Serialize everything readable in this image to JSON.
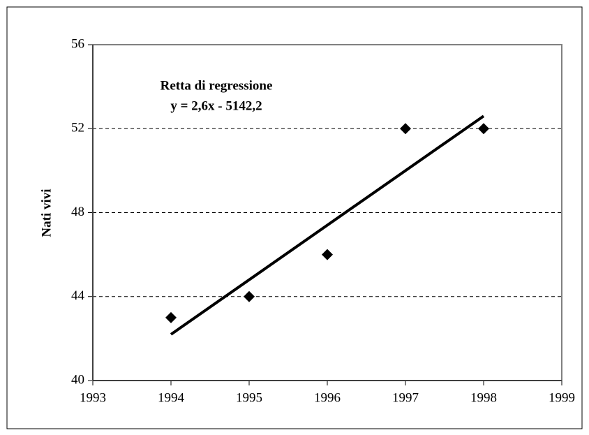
{
  "chart_data": {
    "type": "scatter",
    "y_label": "Nati vivi",
    "annotations": [
      "Retta di regressione",
      "y = 2,6x - 5142,2"
    ],
    "x": [
      1994,
      1995,
      1996,
      1997,
      1998
    ],
    "values": [
      43,
      44,
      46,
      52,
      52
    ],
    "color": "#000000",
    "trendline": {
      "x": [
        1994,
        1998
      ],
      "values": [
        42.2,
        52.6
      ],
      "color": "#000000"
    },
    "xlim": [
      1993,
      1999
    ],
    "xticks": [
      1993,
      1994,
      1995,
      1996,
      1997,
      1998,
      1999
    ],
    "ylim": [
      40,
      56
    ],
    "yticks": [
      40,
      44,
      48,
      52,
      56
    ],
    "grid": true
  }
}
